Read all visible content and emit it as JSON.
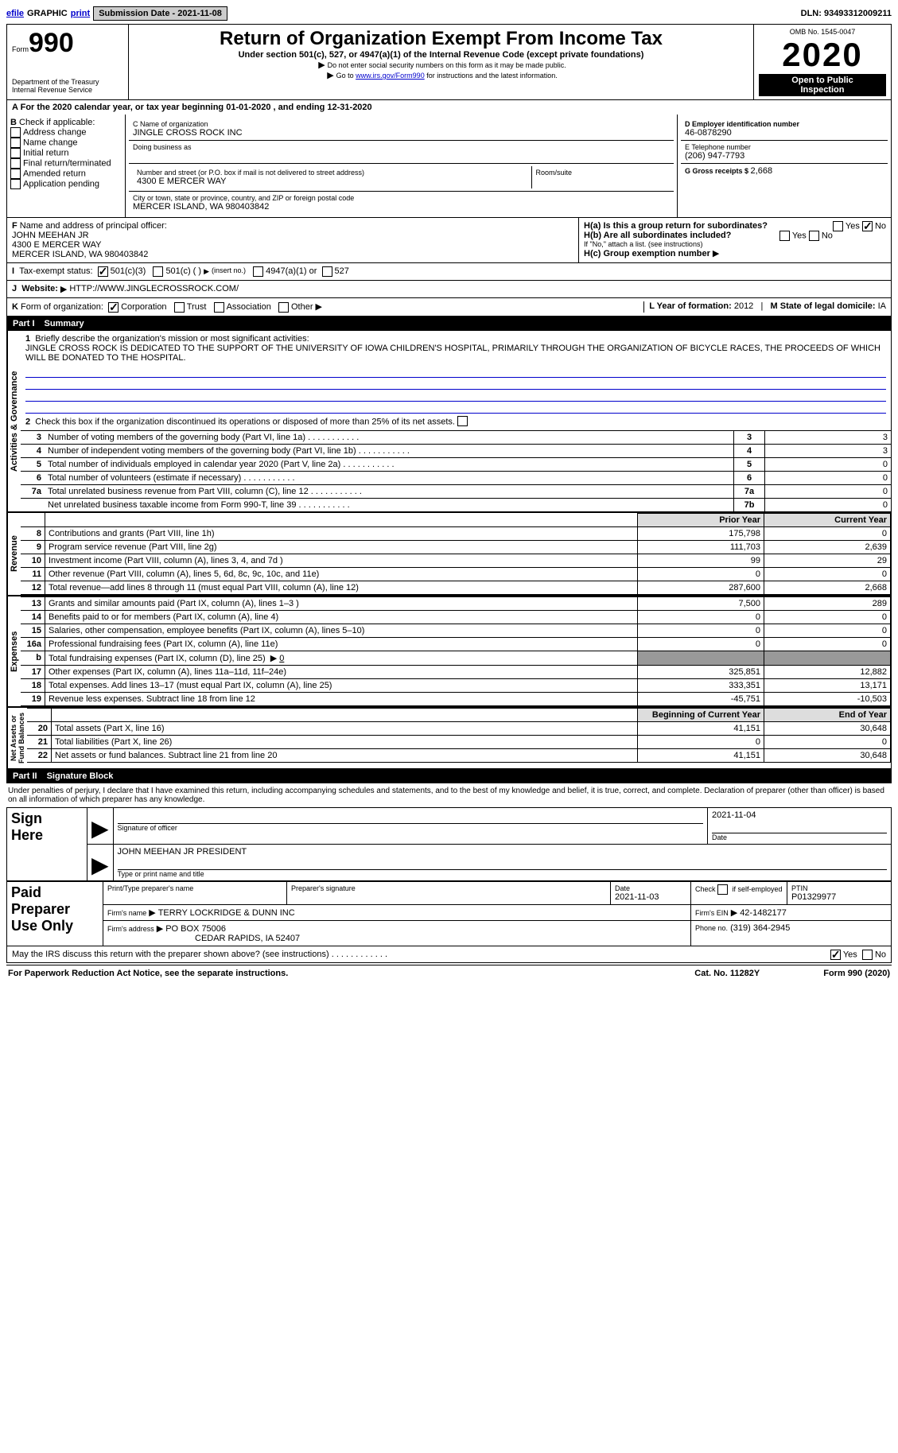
{
  "topbar": {
    "efile": "efile",
    "graphic": "GRAPHIC",
    "print": "print",
    "sub_date_label": "Submission Date - ",
    "sub_date": "2021-11-08",
    "dln_label": "DLN: ",
    "dln": "93493312009211"
  },
  "header": {
    "form_word": "Form",
    "form_num": "990",
    "dept": "Department of the Treasury\nInternal Revenue Service",
    "title": "Return of Organization Exempt From Income Tax",
    "sub1": "Under section 501(c), 527, or 4947(a)(1) of the Internal Revenue Code (except private foundations)",
    "sub2_pre": "Do not enter social security numbers on this form as it may be made public.",
    "sub3_pre": "Go to ",
    "sub3_link": "www.irs.gov/Form990",
    "sub3_post": " for instructions and the latest information.",
    "omb": "OMB No. 1545-0047",
    "year": "2020",
    "open": "Open to Public\nInspection"
  },
  "period": {
    "label_a": "A",
    "text": "For the 2020 calendar year, or tax year beginning ",
    "begin": "01-01-2020",
    "mid": " , and ending ",
    "end": "12-31-2020"
  },
  "boxB": {
    "label": "B",
    "intro": "Check if applicable:",
    "opts": [
      "Address change",
      "Name change",
      "Initial return",
      "Final return/terminated",
      "Amended return",
      "Application pending"
    ]
  },
  "boxC": {
    "name_label": "C Name of organization",
    "name": "JINGLE CROSS ROCK INC",
    "dba_label": "Doing business as",
    "street_label": "Number and street (or P.O. box if mail is not delivered to street address)",
    "room_label": "Room/suite",
    "street": "4300 E MERCER WAY",
    "city_label": "City or town, state or province, country, and ZIP or foreign postal code",
    "city": "MERCER ISLAND, WA  980403842"
  },
  "boxD": {
    "label": "D Employer identification number",
    "ein": "46-0878290",
    "phone_label": "E Telephone number",
    "phone": "(206) 947-7793",
    "g_label": "G Gross receipts $ ",
    "g_val": "2,668"
  },
  "boxF": {
    "label": "F",
    "text": "Name and address of principal officer:",
    "name": "JOHN MEEHAN JR",
    "addr1": "4300 E MERCER WAY",
    "addr2": "MERCER ISLAND, WA  980403842"
  },
  "boxH": {
    "a": "H(a)  Is this a group return for subordinates?",
    "b": "H(b)  Are all subordinates included?",
    "b_note": "If \"No,\" attach a list. (see instructions)",
    "c": "H(c)  Group exemption number",
    "yes": "Yes",
    "no": "No"
  },
  "statusI": {
    "label": "I",
    "text": "Tax-exempt status:",
    "o1": "501(c)(3)",
    "o2": "501(c) (   )",
    "o2_hint": "(insert no.)",
    "o3": "4947(a)(1) or",
    "o4": "527"
  },
  "websiteJ": {
    "label": "J",
    "text": "Website:",
    "url": "HTTP://WWW.JINGLECROSSROCK.COM/"
  },
  "korg": {
    "label": "K",
    "text": "Form of organization:",
    "opts": [
      "Corporation",
      "Trust",
      "Association",
      "Other"
    ],
    "L": "L Year of formation: ",
    "L_val": "2012",
    "M": "M State of legal domicile: ",
    "M_val": "IA"
  },
  "part1": {
    "label": "Part I",
    "title": "Summary",
    "side_a": "Activities & Governance",
    "side_r": "Revenue",
    "side_e": "Expenses",
    "side_n": "Net Assets or\nFund Balances",
    "l1": "Briefly describe the organization's mission or most significant activities:",
    "mission": "JINGLE CROSS ROCK IS DEDICATED TO THE SUPPORT OF THE UNIVERSITY OF IOWA CHILDREN'S HOSPITAL, PRIMARILY THROUGH THE ORGANIZATION OF BICYCLE RACES, THE PROCEEDS OF WHICH WILL BE DONATED TO THE HOSPITAL.",
    "l2": "Check this box         if the organization discontinued its operations or disposed of more than 25% of its net assets.",
    "lines_gov": [
      {
        "n": "3",
        "t": "Number of voting members of the governing body (Part VI, line 1a)",
        "box": "3",
        "v": "3"
      },
      {
        "n": "4",
        "t": "Number of independent voting members of the governing body (Part VI, line 1b)",
        "box": "4",
        "v": "3"
      },
      {
        "n": "5",
        "t": "Total number of individuals employed in calendar year 2020 (Part V, line 2a)",
        "box": "5",
        "v": "0"
      },
      {
        "n": "6",
        "t": "Total number of volunteers (estimate if necessary)",
        "box": "6",
        "v": "0"
      },
      {
        "n": "7a",
        "t": "Total unrelated business revenue from Part VIII, column (C), line 12",
        "box": "7a",
        "v": "0"
      },
      {
        "n": "",
        "t": "Net unrelated business taxable income from Form 990-T, line 39",
        "box": "7b",
        "v": "0"
      }
    ],
    "col_prior": "Prior Year",
    "col_current": "Current Year",
    "col_begin": "Beginning of Current Year",
    "col_end": "End of Year",
    "rev": [
      {
        "n": "8",
        "t": "Contributions and grants (Part VIII, line 1h)",
        "p": "175,798",
        "c": "0"
      },
      {
        "n": "9",
        "t": "Program service revenue (Part VIII, line 2g)",
        "p": "111,703",
        "c": "2,639"
      },
      {
        "n": "10",
        "t": "Investment income (Part VIII, column (A), lines 3, 4, and 7d )",
        "p": "99",
        "c": "29"
      },
      {
        "n": "11",
        "t": "Other revenue (Part VIII, column (A), lines 5, 6d, 8c, 9c, 10c, and 11e)",
        "p": "0",
        "c": "0"
      },
      {
        "n": "12",
        "t": "Total revenue—add lines 8 through 11 (must equal Part VIII, column (A), line 12)",
        "p": "287,600",
        "c": "2,668"
      }
    ],
    "exp": [
      {
        "n": "13",
        "t": "Grants and similar amounts paid (Part IX, column (A), lines 1–3 )",
        "p": "7,500",
        "c": "289"
      },
      {
        "n": "14",
        "t": "Benefits paid to or for members (Part IX, column (A), line 4)",
        "p": "0",
        "c": "0"
      },
      {
        "n": "15",
        "t": "Salaries, other compensation, employee benefits (Part IX, column (A), lines 5–10)",
        "p": "0",
        "c": "0"
      },
      {
        "n": "16a",
        "t": "Professional fundraising fees (Part IX, column (A), line 11e)",
        "p": "0",
        "c": "0"
      },
      {
        "n": "b",
        "t": "Total fundraising expenses (Part IX, column (D), line 25)",
        "extra": "0",
        "grey": true
      },
      {
        "n": "17",
        "t": "Other expenses (Part IX, column (A), lines 11a–11d, 11f–24e)",
        "p": "325,851",
        "c": "12,882"
      },
      {
        "n": "18",
        "t": "Total expenses. Add lines 13–17 (must equal Part IX, column (A), line 25)",
        "p": "333,351",
        "c": "13,171"
      },
      {
        "n": "19",
        "t": "Revenue less expenses. Subtract line 18 from line 12",
        "p": "-45,751",
        "c": "-10,503"
      }
    ],
    "net": [
      {
        "n": "20",
        "t": "Total assets (Part X, line 16)",
        "p": "41,151",
        "c": "30,648"
      },
      {
        "n": "21",
        "t": "Total liabilities (Part X, line 26)",
        "p": "0",
        "c": "0"
      },
      {
        "n": "22",
        "t": "Net assets or fund balances. Subtract line 21 from line 20",
        "p": "41,151",
        "c": "30,648"
      }
    ]
  },
  "part2": {
    "label": "Part II",
    "title": "Signature Block",
    "intro": "Under penalties of perjury, I declare that I have examined this return, including accompanying schedules and statements, and to the best of my knowledge and belief, it is true, correct, and complete. Declaration of preparer (other than officer) is based on all information of which preparer has any knowledge.",
    "sign_here": "Sign\nHere",
    "sig_officer": "Signature of officer",
    "date": "Date",
    "sig_date": "2021-11-04",
    "officer_name": "JOHN MEEHAN JR  PRESIDENT",
    "type_name": "Type or print name and title",
    "paid": "Paid\nPreparer\nUse Only",
    "prep_name_label": "Print/Type preparer's name",
    "prep_sig_label": "Preparer's signature",
    "prep_date_label": "Date",
    "prep_date": "2021-11-03",
    "check_se": "Check         if self-employed",
    "ptin_label": "PTIN",
    "ptin": "P01329977",
    "firm_name_label": "Firm's name",
    "firm_name": "TERRY LOCKRIDGE & DUNN INC",
    "firm_ein_label": "Firm's EIN",
    "firm_ein": "42-1482177",
    "firm_addr_label": "Firm's address",
    "firm_addr": "PO BOX 75006",
    "firm_addr2": "CEDAR RAPIDS, IA  52407",
    "phone_label": "Phone no.",
    "phone": "(319) 364-2945",
    "discuss": "May the IRS discuss this return with the preparer shown above? (see instructions)",
    "yes": "Yes",
    "no": "No"
  },
  "footer": {
    "left": "For Paperwork Reduction Act Notice, see the separate instructions.",
    "mid": "Cat. No. 11282Y",
    "right": "Form 990 (2020)"
  }
}
